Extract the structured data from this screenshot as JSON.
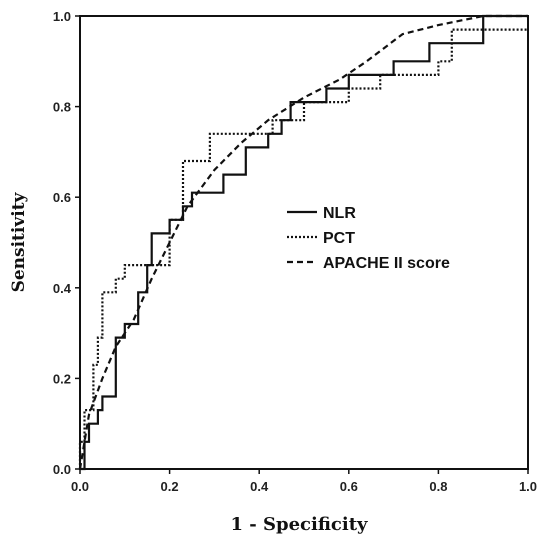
{
  "chart_data": {
    "type": "line",
    "xlabel": "1 - Specificity",
    "ylabel": "Sensitivity",
    "xlim": [
      0.0,
      1.0
    ],
    "ylim": [
      0.0,
      1.0
    ],
    "x_ticks": [
      "0.0",
      "0.2",
      "0.4",
      "0.6",
      "0.8",
      "1.0"
    ],
    "y_ticks": [
      "0.0",
      "0.2",
      "0.4",
      "0.6",
      "0.8",
      "1.0"
    ],
    "grid": false,
    "legend_position": "center-right",
    "series": [
      {
        "name": "NLR",
        "line_style": "solid",
        "color": "#111111",
        "points": [
          [
            0,
            0
          ],
          [
            0.01,
            0
          ],
          [
            0.01,
            0.06
          ],
          [
            0.02,
            0.06
          ],
          [
            0.02,
            0.1
          ],
          [
            0.04,
            0.1
          ],
          [
            0.04,
            0.13
          ],
          [
            0.05,
            0.13
          ],
          [
            0.05,
            0.16
          ],
          [
            0.08,
            0.16
          ],
          [
            0.08,
            0.29
          ],
          [
            0.1,
            0.29
          ],
          [
            0.1,
            0.32
          ],
          [
            0.13,
            0.32
          ],
          [
            0.13,
            0.39
          ],
          [
            0.15,
            0.39
          ],
          [
            0.15,
            0.45
          ],
          [
            0.16,
            0.45
          ],
          [
            0.16,
            0.52
          ],
          [
            0.2,
            0.52
          ],
          [
            0.2,
            0.55
          ],
          [
            0.23,
            0.55
          ],
          [
            0.23,
            0.58
          ],
          [
            0.25,
            0.58
          ],
          [
            0.25,
            0.61
          ],
          [
            0.32,
            0.61
          ],
          [
            0.32,
            0.65
          ],
          [
            0.37,
            0.65
          ],
          [
            0.37,
            0.71
          ],
          [
            0.42,
            0.71
          ],
          [
            0.42,
            0.74
          ],
          [
            0.45,
            0.74
          ],
          [
            0.45,
            0.77
          ],
          [
            0.47,
            0.77
          ],
          [
            0.47,
            0.81
          ],
          [
            0.55,
            0.81
          ],
          [
            0.55,
            0.84
          ],
          [
            0.6,
            0.84
          ],
          [
            0.6,
            0.87
          ],
          [
            0.7,
            0.87
          ],
          [
            0.7,
            0.9
          ],
          [
            0.78,
            0.9
          ],
          [
            0.78,
            0.94
          ],
          [
            0.9,
            0.94
          ],
          [
            0.9,
            1.0
          ],
          [
            1.0,
            1.0
          ]
        ]
      },
      {
        "name": "PCT",
        "line_style": "dotted",
        "color": "#111111",
        "points": [
          [
            0,
            0
          ],
          [
            0.0,
            0.06
          ],
          [
            0.01,
            0.06
          ],
          [
            0.01,
            0.13
          ],
          [
            0.03,
            0.13
          ],
          [
            0.03,
            0.23
          ],
          [
            0.04,
            0.23
          ],
          [
            0.04,
            0.29
          ],
          [
            0.05,
            0.29
          ],
          [
            0.05,
            0.39
          ],
          [
            0.08,
            0.39
          ],
          [
            0.08,
            0.42
          ],
          [
            0.1,
            0.42
          ],
          [
            0.1,
            0.45
          ],
          [
            0.2,
            0.45
          ],
          [
            0.2,
            0.55
          ],
          [
            0.23,
            0.55
          ],
          [
            0.23,
            0.68
          ],
          [
            0.29,
            0.68
          ],
          [
            0.29,
            0.74
          ],
          [
            0.43,
            0.74
          ],
          [
            0.43,
            0.77
          ],
          [
            0.5,
            0.77
          ],
          [
            0.5,
            0.81
          ],
          [
            0.6,
            0.81
          ],
          [
            0.6,
            0.84
          ],
          [
            0.67,
            0.84
          ],
          [
            0.67,
            0.87
          ],
          [
            0.8,
            0.87
          ],
          [
            0.8,
            0.9
          ],
          [
            0.83,
            0.9
          ],
          [
            0.83,
            0.97
          ],
          [
            1.0,
            0.97
          ]
        ]
      },
      {
        "name": "APACHE II score",
        "line_style": "dashed",
        "color": "#111111",
        "points": [
          [
            0,
            0
          ],
          [
            0.02,
            0.12
          ],
          [
            0.05,
            0.2
          ],
          [
            0.08,
            0.27
          ],
          [
            0.12,
            0.33
          ],
          [
            0.16,
            0.42
          ],
          [
            0.2,
            0.5
          ],
          [
            0.24,
            0.58
          ],
          [
            0.3,
            0.66
          ],
          [
            0.36,
            0.72
          ],
          [
            0.42,
            0.77
          ],
          [
            0.5,
            0.82
          ],
          [
            0.58,
            0.86
          ],
          [
            0.64,
            0.9
          ],
          [
            0.68,
            0.93
          ],
          [
            0.72,
            0.96
          ],
          [
            0.8,
            0.98
          ],
          [
            0.9,
            1.0
          ],
          [
            1.0,
            1.0
          ]
        ]
      }
    ]
  }
}
